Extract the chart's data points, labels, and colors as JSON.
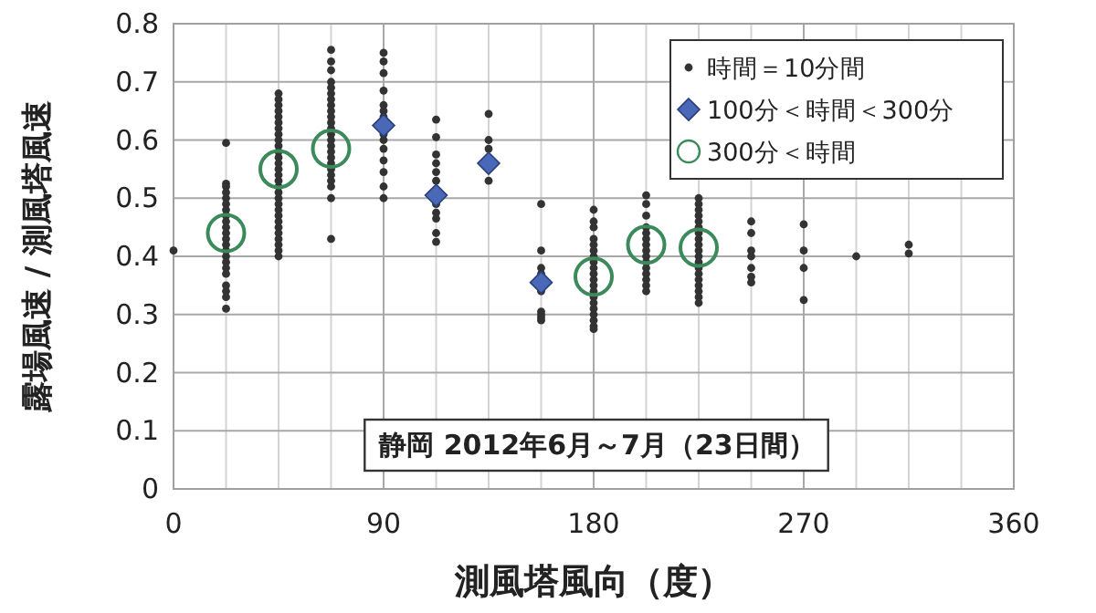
{
  "chart_data": {
    "type": "scatter",
    "xlabel": "測風塔風向（度）",
    "ylabel": "露場風速 / 測風塔風速",
    "xlim": [
      0,
      360
    ],
    "xticks": [
      0,
      90,
      180,
      270,
      360
    ],
    "ylim": [
      0,
      0.8
    ],
    "yticks": [
      0,
      0.1,
      0.2,
      0.3,
      0.4,
      0.5,
      0.6,
      0.7,
      0.8
    ],
    "grid": true,
    "legend": "top right",
    "annotations": [
      "静岡 2012年6月～7月（23日間）"
    ],
    "series": [
      {
        "name": "時間＝10分間",
        "color": "#333333",
        "marker": "circle",
        "x": [
          0,
          22.5,
          22.5,
          22.5,
          22.5,
          22.5,
          22.5,
          22.5,
          22.5,
          22.5,
          22.5,
          22.5,
          22.5,
          22.5,
          22.5,
          22.5,
          22.5,
          22.5,
          22.5,
          22.5,
          22.5,
          22.5,
          22.5,
          45,
          45,
          45,
          45,
          45,
          45,
          45,
          45,
          45,
          45,
          45,
          45,
          45,
          45,
          45,
          45,
          45,
          45,
          45,
          45,
          45,
          45,
          45,
          45,
          45,
          45,
          45,
          45,
          45,
          67.5,
          67.5,
          67.5,
          67.5,
          67.5,
          67.5,
          67.5,
          67.5,
          67.5,
          67.5,
          67.5,
          67.5,
          67.5,
          67.5,
          67.5,
          67.5,
          67.5,
          67.5,
          67.5,
          67.5,
          67.5,
          67.5,
          67.5,
          67.5,
          90,
          90,
          90,
          90,
          90,
          90,
          90,
          90,
          90,
          90,
          90,
          90,
          90,
          90,
          112.5,
          112.5,
          112.5,
          112.5,
          112.5,
          112.5,
          112.5,
          112.5,
          112.5,
          112.5,
          112.5,
          135,
          135,
          135,
          135,
          157.5,
          157.5,
          157.5,
          157.5,
          157.5,
          157.5,
          157.5,
          157.5,
          157.5,
          180,
          180,
          180,
          180,
          180,
          180,
          180,
          180,
          180,
          180,
          180,
          180,
          180,
          180,
          180,
          180,
          180,
          180,
          180,
          180,
          202.5,
          202.5,
          202.5,
          202.5,
          202.5,
          202.5,
          202.5,
          202.5,
          202.5,
          202.5,
          202.5,
          202.5,
          202.5,
          202.5,
          202.5,
          225,
          225,
          225,
          225,
          225,
          225,
          225,
          225,
          225,
          225,
          225,
          225,
          225,
          225,
          225,
          225,
          225,
          225,
          225,
          247.5,
          247.5,
          247.5,
          247.5,
          247.5,
          247.5,
          247.5,
          270,
          270,
          270,
          270,
          292.5,
          315,
          315
        ],
        "values": [
          0.41,
          0.595,
          0.525,
          0.52,
          0.51,
          0.5,
          0.49,
          0.48,
          0.47,
          0.46,
          0.45,
          0.44,
          0.43,
          0.42,
          0.41,
          0.4,
          0.39,
          0.38,
          0.37,
          0.35,
          0.34,
          0.33,
          0.31,
          0.68,
          0.67,
          0.66,
          0.65,
          0.64,
          0.63,
          0.62,
          0.61,
          0.6,
          0.59,
          0.58,
          0.57,
          0.56,
          0.55,
          0.54,
          0.53,
          0.52,
          0.51,
          0.5,
          0.49,
          0.48,
          0.47,
          0.46,
          0.45,
          0.44,
          0.43,
          0.42,
          0.41,
          0.4,
          0.755,
          0.735,
          0.72,
          0.7,
          0.69,
          0.68,
          0.67,
          0.66,
          0.65,
          0.64,
          0.63,
          0.62,
          0.61,
          0.6,
          0.59,
          0.58,
          0.57,
          0.56,
          0.55,
          0.54,
          0.53,
          0.52,
          0.5,
          0.43,
          0.75,
          0.735,
          0.715,
          0.685,
          0.66,
          0.65,
          0.64,
          0.61,
          0.6,
          0.585,
          0.565,
          0.545,
          0.52,
          0.5,
          0.635,
          0.605,
          0.575,
          0.56,
          0.545,
          0.53,
          0.49,
          0.475,
          0.465,
          0.44,
          0.425,
          0.645,
          0.6,
          0.585,
          0.53,
          0.49,
          0.41,
          0.38,
          0.37,
          0.34,
          0.305,
          0.3,
          0.295,
          0.29,
          0.48,
          0.46,
          0.45,
          0.43,
          0.42,
          0.41,
          0.4,
          0.39,
          0.38,
          0.37,
          0.36,
          0.35,
          0.34,
          0.33,
          0.32,
          0.31,
          0.3,
          0.29,
          0.28,
          0.275,
          0.505,
          0.49,
          0.47,
          0.45,
          0.44,
          0.43,
          0.42,
          0.41,
          0.4,
          0.39,
          0.38,
          0.37,
          0.36,
          0.35,
          0.34,
          0.5,
          0.49,
          0.48,
          0.47,
          0.46,
          0.45,
          0.44,
          0.43,
          0.42,
          0.41,
          0.4,
          0.39,
          0.38,
          0.37,
          0.36,
          0.35,
          0.34,
          0.33,
          0.32,
          0.46,
          0.44,
          0.41,
          0.4,
          0.38,
          0.365,
          0.355,
          0.455,
          0.41,
          0.38,
          0.325,
          0.4,
          0.42,
          0.405
        ]
      },
      {
        "name": "100分＜時間＜300分",
        "color": "#4a68b8",
        "marker": "diamond",
        "x": [
          90,
          112.5,
          135,
          157.5
        ],
        "values": [
          0.625,
          0.505,
          0.56,
          0.355
        ]
      },
      {
        "name": "300分＜時間",
        "color": "#3a8a5a",
        "marker": "circle_open",
        "x": [
          22.5,
          45,
          67.5,
          180,
          202.5,
          225
        ],
        "values": [
          0.44,
          0.55,
          0.585,
          0.365,
          0.42,
          0.415
        ]
      }
    ]
  }
}
